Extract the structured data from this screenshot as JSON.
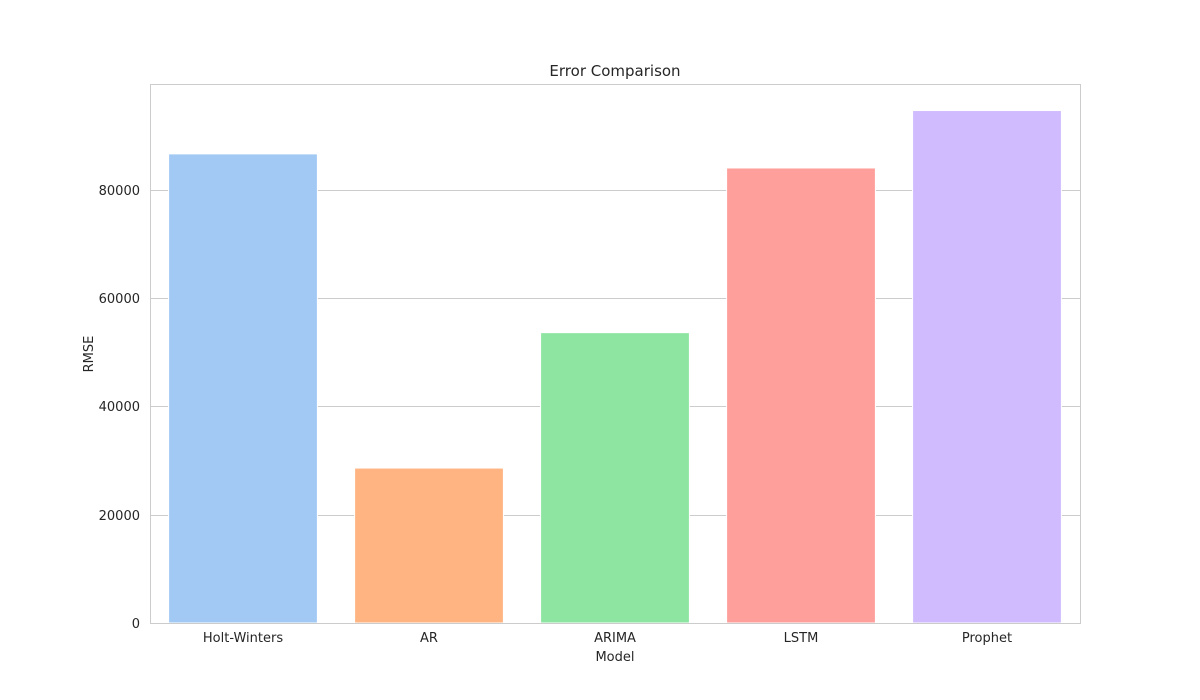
{
  "chart_data": {
    "type": "bar",
    "title": "Error Comparison",
    "xlabel": "Model",
    "ylabel": "RMSE",
    "categories": [
      "Holt-Winters",
      "AR",
      "ARIMA",
      "LSTM",
      "Prophet"
    ],
    "values": [
      86600,
      28600,
      53600,
      84000,
      94600
    ],
    "colors": [
      "#a1c9f4",
      "#ffb482",
      "#8de5a1",
      "#ff9f9b",
      "#d0bbff"
    ],
    "ylim": [
      0,
      99500
    ],
    "yticks": [
      0,
      20000,
      40000,
      60000,
      80000
    ],
    "ytick_labels": [
      "0",
      "20000",
      "40000",
      "60000",
      "80000"
    ],
    "grid": true,
    "grid_axis": "y"
  }
}
